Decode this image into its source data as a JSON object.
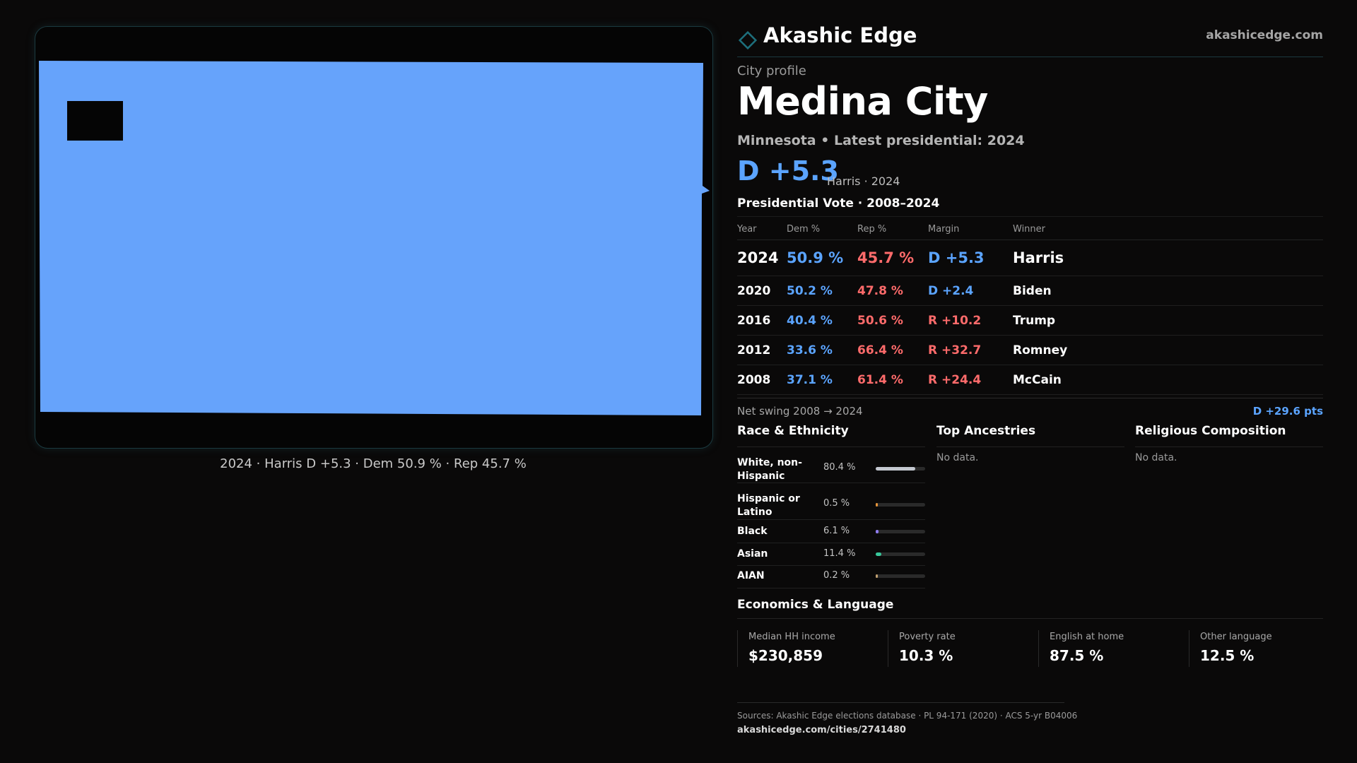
{
  "brand": {
    "name": "Akashic Edge",
    "domain": "akashicedge.com",
    "logo_icon": "diamond-outline-icon",
    "accent": "#1d6f7c"
  },
  "profile": {
    "kicker": "City profile",
    "city": "Medina City",
    "subtitle": "Minnesota • Latest presidential: 2024",
    "margin": "D +5.3",
    "margin_note": "Harris · 2024"
  },
  "map": {
    "fill_color": "#66a3fb",
    "caption": "2024 · Harris D +5.3 · Dem 50.9 % · Rep 45.7 %"
  },
  "presidential": {
    "title": "Presidential Vote · 2008–2024",
    "headers": [
      "Year",
      "Dem %",
      "Rep %",
      "Margin",
      "Winner"
    ],
    "rows": [
      {
        "year": "2024",
        "dem": "50.9 %",
        "rep": "45.7 %",
        "margin": "D +5.3",
        "party": "D",
        "winner": "Harris"
      },
      {
        "year": "2020",
        "dem": "50.2 %",
        "rep": "47.8 %",
        "margin": "D +2.4",
        "party": "D",
        "winner": "Biden"
      },
      {
        "year": "2016",
        "dem": "40.4 %",
        "rep": "50.6 %",
        "margin": "R +10.2",
        "party": "R",
        "winner": "Trump"
      },
      {
        "year": "2012",
        "dem": "33.6 %",
        "rep": "66.4 %",
        "margin": "R +32.7",
        "party": "R",
        "winner": "Romney"
      },
      {
        "year": "2008",
        "dem": "37.1 %",
        "rep": "61.4 %",
        "margin": "R +24.4",
        "party": "R",
        "winner": "McCain"
      }
    ],
    "swing_label": "Net swing 2008 → 2024",
    "swing_value": "D +29.6 pts"
  },
  "race": {
    "title": "Race & Ethnicity",
    "rows": [
      {
        "label": "White, non-Hispanic",
        "pct": "80.4 %",
        "share": 0.804,
        "color": "#c4c8d0"
      },
      {
        "label": "Hispanic or Latino",
        "pct": "0.5 %",
        "share": 0.005,
        "color": "#e8953a"
      },
      {
        "label": "Black",
        "pct": "6.1 %",
        "share": 0.061,
        "color": "#8f7cf0"
      },
      {
        "label": "Asian",
        "pct": "11.4 %",
        "share": 0.114,
        "color": "#38c79a"
      },
      {
        "label": "AIAN",
        "pct": "0.2 %",
        "share": 0.002,
        "color": "#c0a070"
      }
    ]
  },
  "ancestries": {
    "title": "Top Ancestries",
    "empty": "No data."
  },
  "religion": {
    "title": "Religious Composition",
    "empty": "No data."
  },
  "economics": {
    "title": "Economics & Language",
    "stats": [
      {
        "label": "Median HH income",
        "value": "$230,859"
      },
      {
        "label": "Poverty rate",
        "value": "10.3 %"
      },
      {
        "label": "English at home",
        "value": "87.5 %"
      },
      {
        "label": "Other language",
        "value": "12.5 %"
      }
    ]
  },
  "footer": {
    "sources": "Sources: Akashic Edge elections database · PL 94-171 (2020) · ACS 5-yr B04006",
    "url": "akashicedge.com/cities/2741480"
  }
}
